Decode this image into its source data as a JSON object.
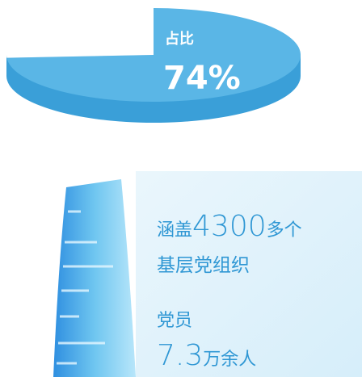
{
  "chart_data": {
    "type": "pie",
    "categories": [
      null,
      null
    ],
    "values": [
      74,
      26
    ],
    "value_labels": [
      "74%",
      null
    ],
    "colors": [
      "#5ab6e6",
      "#ffffff"
    ],
    "slice_label": "占比"
  },
  "text_panel": {
    "line1_prefix": "涵盖",
    "count": "4300",
    "line1_suffix": "多个",
    "line2": "基层党组织",
    "member_label": "党员",
    "member_number": "7.3",
    "member_suffix": "万余人"
  }
}
